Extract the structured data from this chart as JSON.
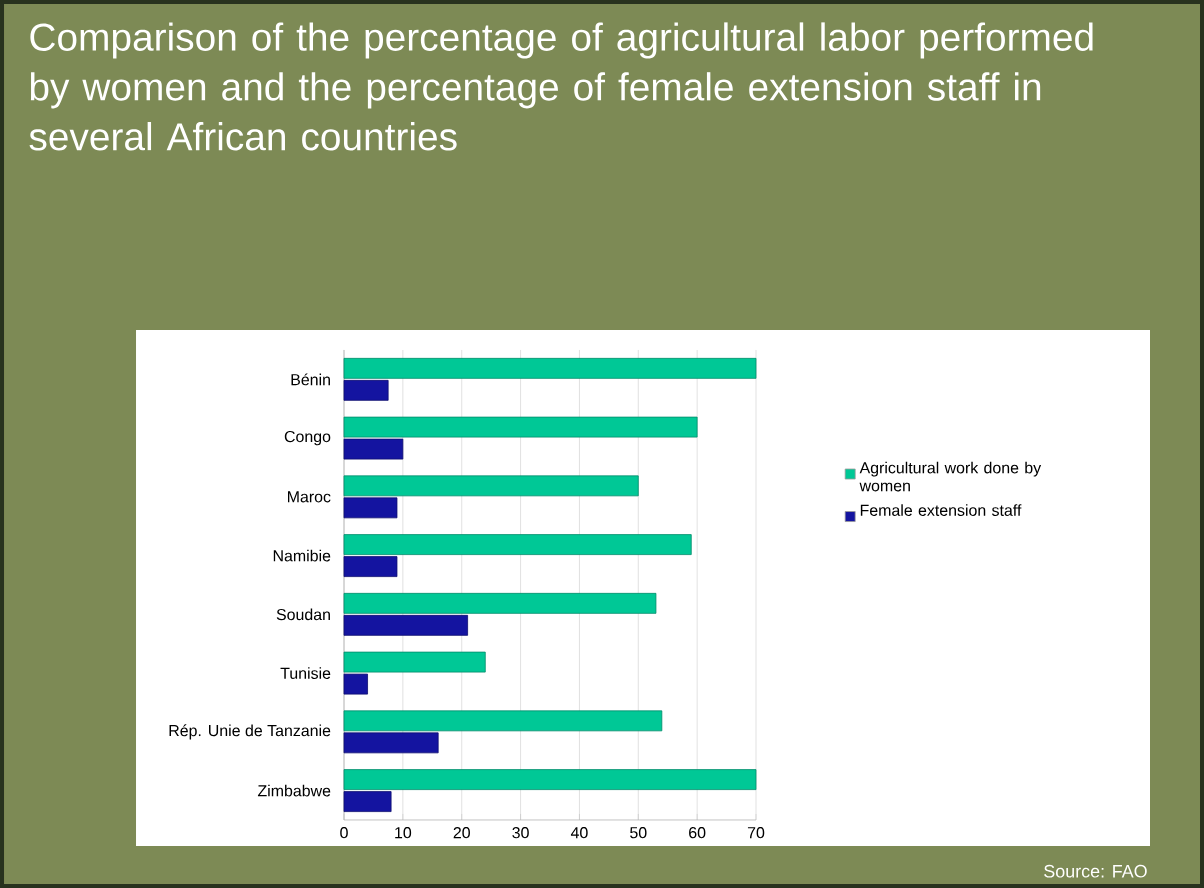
{
  "chart_data": {
    "type": "bar",
    "orientation": "horizontal",
    "title": "Comparison of the percentage of agricultural labor performed by women and the percentage of female extension staff in several African countries",
    "categories": [
      "Bénin",
      "Congo",
      "Maroc",
      "Namibie",
      "Soudan",
      "Tunisie",
      "Rép. Unie de Tanzanie",
      "Zimbabwe"
    ],
    "series": [
      {
        "name": "Agricultural work done by women",
        "color": "#00c896",
        "values": [
          70,
          60,
          50,
          59,
          53,
          24,
          54,
          70
        ]
      },
      {
        "name": "Female extension staff",
        "color": "#1414a0",
        "values": [
          7.5,
          10,
          9,
          9,
          21,
          4,
          16,
          8
        ]
      }
    ],
    "xlim": [
      0,
      70
    ],
    "xticks": [
      0,
      10,
      20,
      30,
      40,
      50,
      60,
      70
    ],
    "grid": "x",
    "legend": "right",
    "annotations": [
      "Source: FAO"
    ]
  }
}
